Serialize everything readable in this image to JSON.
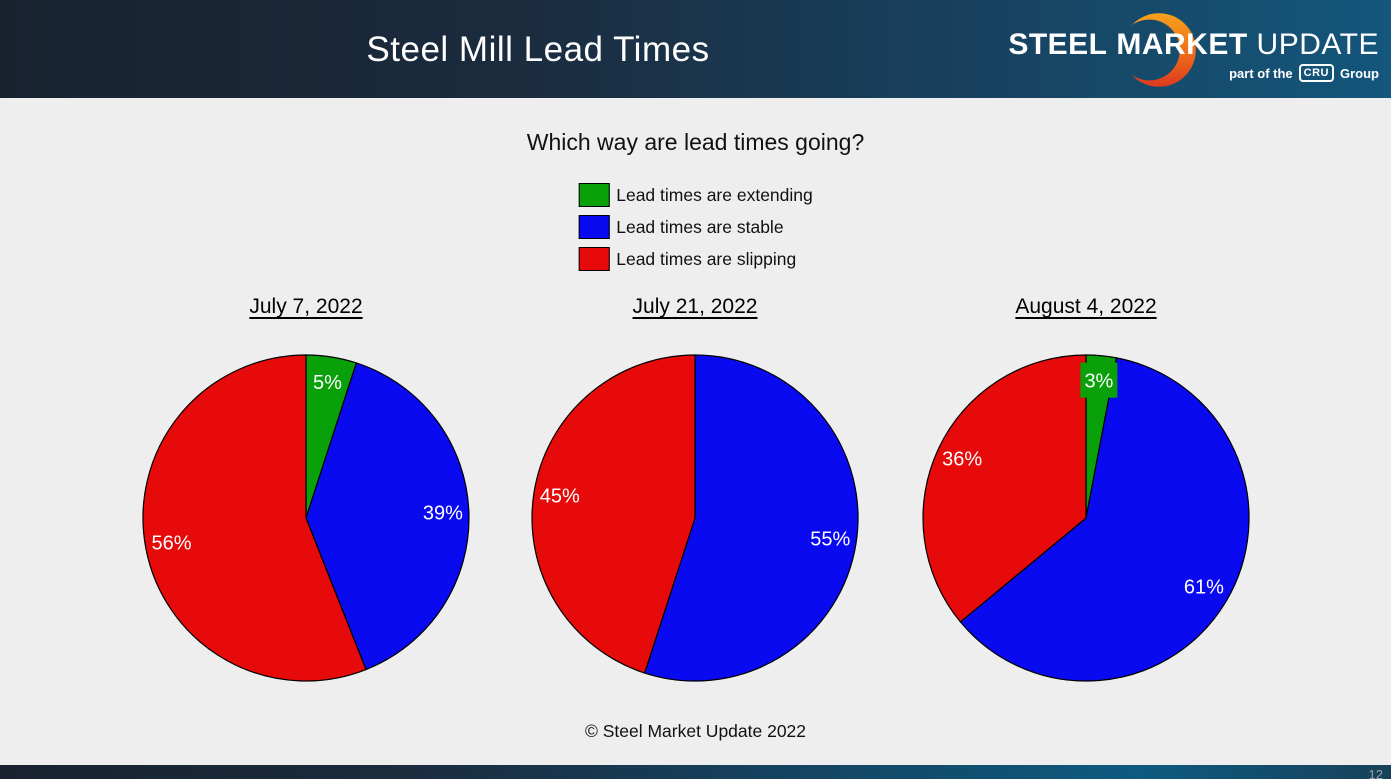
{
  "header": {
    "title": "Steel Mill Lead Times",
    "logo": {
      "word1": "STEEL",
      "word2": "MARKET",
      "word3": "UPDATE",
      "tagline_prefix": "part of the",
      "tagline_badge": "CRU",
      "tagline_suffix": "Group"
    }
  },
  "subtitle": "Which way are lead times going?",
  "legend": {
    "items": [
      {
        "label": "Lead times are extending",
        "color": "#0aa00a"
      },
      {
        "label": "Lead times are stable",
        "color": "#0a0af0"
      },
      {
        "label": "Lead times are slipping",
        "color": "#e60a0a"
      }
    ]
  },
  "chart_data": [
    {
      "type": "pie",
      "title": "July 7, 2022",
      "start_angle_deg": 0,
      "direction": "clockwise",
      "slices": [
        {
          "label": "Lead times are extending",
          "value": 5,
          "display": "5%",
          "color": "#0aa00a",
          "label_bg": false
        },
        {
          "label": "Lead times are stable",
          "value": 39,
          "display": "39%",
          "color": "#0a0af0",
          "label_bg": false
        },
        {
          "label": "Lead times are slipping",
          "value": 56,
          "display": "56%",
          "color": "#e60a0a",
          "label_bg": false
        }
      ]
    },
    {
      "type": "pie",
      "title": "July 21, 2022",
      "start_angle_deg": 0,
      "direction": "clockwise",
      "slices": [
        {
          "label": "Lead times are extending",
          "value": 0,
          "display": "0%",
          "color": "#0aa00a",
          "label_bg": false
        },
        {
          "label": "Lead times are stable",
          "value": 55,
          "display": "55%",
          "color": "#0a0af0",
          "label_bg": false
        },
        {
          "label": "Lead times are slipping",
          "value": 45,
          "display": "45%",
          "color": "#e60a0a",
          "label_bg": false
        }
      ]
    },
    {
      "type": "pie",
      "title": "August 4, 2022",
      "start_angle_deg": 0,
      "direction": "clockwise",
      "slices": [
        {
          "label": "Lead times are extending",
          "value": 3,
          "display": "3%",
          "color": "#0aa00a",
          "label_bg": true
        },
        {
          "label": "Lead times are stable",
          "value": 61,
          "display": "61%",
          "color": "#0a0af0",
          "label_bg": false
        },
        {
          "label": "Lead times are slipping",
          "value": 36,
          "display": "36%",
          "color": "#e60a0a",
          "label_bg": false
        }
      ]
    }
  ],
  "footer": {
    "copyright": "© Steel Market Update 2022"
  },
  "page_number": "12",
  "colors": {
    "extending_green": "#0aa00a",
    "stable_blue": "#0a0af0",
    "slipping_red": "#e60a0a",
    "header_dark": "#18222f",
    "header_teal": "#14567c",
    "logo_orange_top": "#f7a11d",
    "logo_orange_bottom": "#de3a1f"
  }
}
